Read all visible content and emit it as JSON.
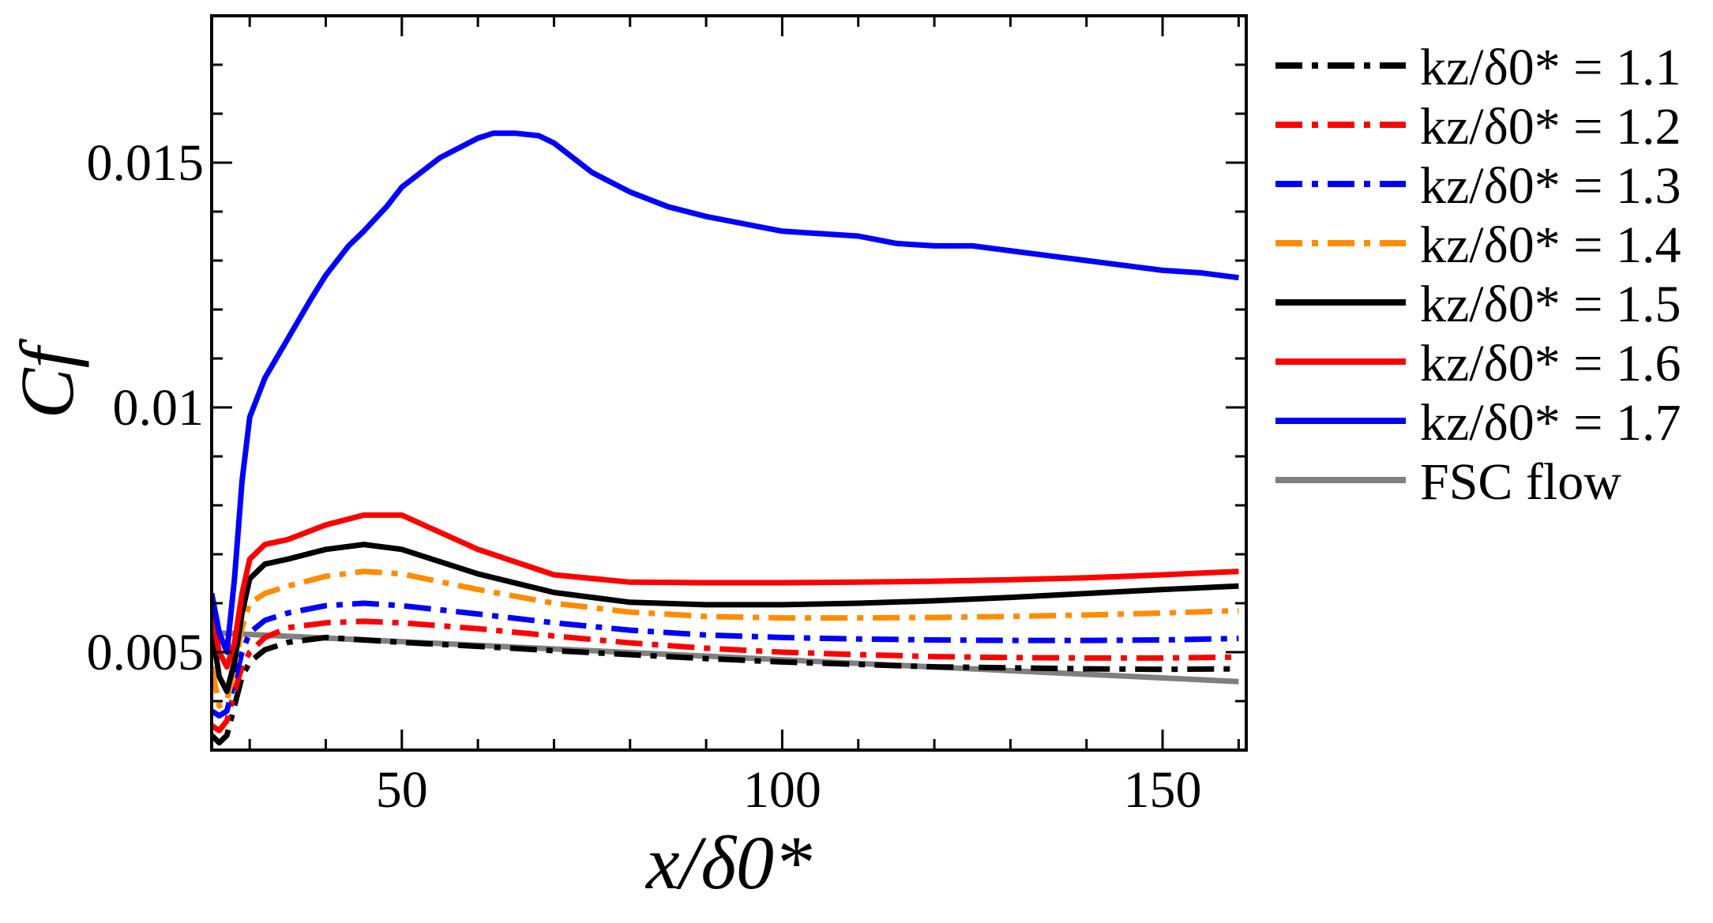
{
  "chart_data": {
    "type": "line",
    "title": "",
    "xlabel": "x/δ0*",
    "ylabel": "Cf",
    "xlim": [
      25,
      161
    ],
    "ylim": [
      0.003,
      0.018
    ],
    "x_ticks": [
      {
        "value": 50,
        "label": "50"
      },
      {
        "value": 100,
        "label": "100"
      },
      {
        "value": 150,
        "label": "150"
      }
    ],
    "x_minor_ticks": [
      30,
      40,
      60,
      70,
      80,
      90,
      110,
      120,
      130,
      140,
      160
    ],
    "y_ticks": [
      {
        "value": 0.005,
        "label": "0.005"
      },
      {
        "value": 0.01,
        "label": "0.01"
      },
      {
        "value": 0.015,
        "label": "0.015"
      }
    ],
    "y_minor_ticks": [
      0.004,
      0.006,
      0.007,
      0.008,
      0.009,
      0.011,
      0.012,
      0.013,
      0.014,
      0.016,
      0.017
    ],
    "legend_position": "outside-right",
    "series": [
      {
        "name": "kz/δ0* = 1.1",
        "label_value": "1.1",
        "color": "#000000",
        "dash": "dashdot",
        "x": [
          25,
          26,
          27,
          28,
          29,
          30,
          32,
          35,
          40,
          45,
          50,
          60,
          70,
          80,
          90,
          100,
          110,
          120,
          130,
          140,
          150,
          160
        ],
        "y": [
          0.0033,
          0.00315,
          0.0033,
          0.0039,
          0.0045,
          0.0048,
          0.00505,
          0.0052,
          0.0053,
          0.00525,
          0.0052,
          0.00512,
          0.00503,
          0.00495,
          0.00487,
          0.0048,
          0.00475,
          0.0047,
          0.00468,
          0.00466,
          0.00465,
          0.00466
        ]
      },
      {
        "name": "kz/δ0* = 1.2",
        "label_value": "1.2",
        "color": "#ff0000",
        "dash": "dashdot",
        "x": [
          25,
          26,
          27,
          28,
          29,
          30,
          32,
          35,
          40,
          45,
          50,
          60,
          70,
          80,
          90,
          100,
          110,
          120,
          130,
          140,
          150,
          160
        ],
        "y": [
          0.0035,
          0.0034,
          0.0036,
          0.0042,
          0.0047,
          0.005,
          0.0053,
          0.0055,
          0.0056,
          0.00563,
          0.0056,
          0.00548,
          0.00533,
          0.00519,
          0.00508,
          0.005,
          0.00495,
          0.00491,
          0.00489,
          0.00488,
          0.00488,
          0.0049
        ]
      },
      {
        "name": "kz/δ0* = 1.3",
        "label_value": "1.3",
        "color": "#0000ff",
        "dash": "dashdot",
        "x": [
          25,
          26,
          27,
          28,
          29,
          30,
          32,
          35,
          40,
          45,
          50,
          60,
          70,
          80,
          90,
          100,
          110,
          120,
          130,
          140,
          150,
          160
        ],
        "y": [
          0.0038,
          0.0037,
          0.0038,
          0.0044,
          0.005,
          0.0054,
          0.00565,
          0.0058,
          0.00595,
          0.006,
          0.00595,
          0.00578,
          0.0056,
          0.00545,
          0.00535,
          0.0053,
          0.00527,
          0.00525,
          0.00524,
          0.00524,
          0.00525,
          0.00528
        ]
      },
      {
        "name": "kz/δ0* = 1.4",
        "label_value": "1.4",
        "color": "#ff8c00",
        "dash": "dashdot",
        "x": [
          25,
          26,
          27,
          28,
          29,
          30,
          32,
          35,
          40,
          45,
          50,
          60,
          70,
          80,
          90,
          100,
          110,
          120,
          130,
          140,
          150,
          160
        ],
        "y": [
          0.0047,
          0.0039,
          0.004,
          0.0047,
          0.0055,
          0.006,
          0.0062,
          0.00635,
          0.00655,
          0.00665,
          0.0066,
          0.00628,
          0.006,
          0.00582,
          0.00573,
          0.0057,
          0.0057,
          0.00571,
          0.00573,
          0.00576,
          0.0058,
          0.00585
        ]
      },
      {
        "name": "kz/δ0* = 1.5",
        "label_value": "1.5",
        "color": "#000000",
        "dash": "solid",
        "x": [
          25,
          26,
          27,
          28,
          29,
          30,
          32,
          35,
          40,
          45,
          50,
          60,
          70,
          80,
          90,
          100,
          110,
          120,
          130,
          140,
          150,
          160
        ],
        "y": [
          0.0055,
          0.0045,
          0.0042,
          0.0048,
          0.0058,
          0.0065,
          0.0068,
          0.0069,
          0.0071,
          0.0072,
          0.0071,
          0.0066,
          0.00622,
          0.00602,
          0.00597,
          0.00597,
          0.006,
          0.00605,
          0.00612,
          0.0062,
          0.00628,
          0.00635
        ]
      },
      {
        "name": "kz/δ0* = 1.6",
        "label_value": "1.6",
        "color": "#ff0000",
        "dash": "solid",
        "x": [
          25,
          26,
          27,
          28,
          29,
          30,
          32,
          35,
          40,
          45,
          50,
          60,
          70,
          80,
          90,
          100,
          110,
          120,
          130,
          140,
          150,
          160
        ],
        "y": [
          0.0058,
          0.005,
          0.0047,
          0.0052,
          0.0062,
          0.0069,
          0.0072,
          0.0073,
          0.0076,
          0.0078,
          0.0078,
          0.0071,
          0.00658,
          0.00643,
          0.00642,
          0.00642,
          0.00643,
          0.00645,
          0.00648,
          0.00652,
          0.00658,
          0.00665
        ]
      },
      {
        "name": "kz/δ0* = 1.7",
        "label_value": "1.7",
        "color": "#0000ff",
        "dash": "solid",
        "x": [
          25,
          26,
          27,
          28,
          29,
          30,
          32,
          35,
          38,
          40,
          43,
          45,
          48,
          50,
          55,
          60,
          62,
          65,
          68,
          70,
          75,
          80,
          85,
          90,
          95,
          100,
          105,
          110,
          115,
          120,
          125,
          130,
          135,
          140,
          145,
          150,
          155,
          160
        ],
        "y": [
          0.0062,
          0.0054,
          0.005,
          0.0065,
          0.0085,
          0.0098,
          0.0106,
          0.0114,
          0.0122,
          0.0127,
          0.0133,
          0.0136,
          0.0141,
          0.0145,
          0.0151,
          0.0155,
          0.0156,
          0.0156,
          0.01555,
          0.0154,
          0.0148,
          0.0144,
          0.0141,
          0.0139,
          0.01375,
          0.0136,
          0.01355,
          0.0135,
          0.01335,
          0.0133,
          0.0133,
          0.0132,
          0.0131,
          0.013,
          0.0129,
          0.0128,
          0.01275,
          0.01265
        ]
      },
      {
        "name": "FSC flow",
        "label_value": "FSC flow",
        "color": "#808080",
        "dash": "solid",
        "x": [
          25,
          160
        ],
        "y": [
          0.0054,
          0.0044
        ]
      }
    ]
  }
}
